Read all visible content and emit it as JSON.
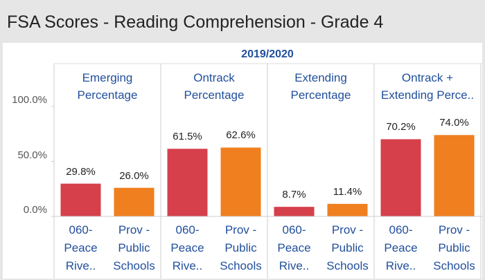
{
  "chart_data": {
    "type": "bar",
    "title": "FSA Scores - Reading Comprehension - Grade 4",
    "subtitle": "2019/2020",
    "categories": [
      "060-Peace Rive..",
      "Prov - Public Schools"
    ],
    "colors": [
      "#d5404b",
      "#f07f1f"
    ],
    "ylim": [
      0,
      100
    ],
    "yticks": [
      {
        "value": 0,
        "label": "0.0%"
      },
      {
        "value": 50,
        "label": "50.0%"
      },
      {
        "value": 100,
        "label": "100.0%"
      }
    ],
    "panels": [
      {
        "name": "Emerging Percentage",
        "values": [
          29.8,
          26.0
        ],
        "value_labels": [
          "29.8%",
          "26.0%"
        ]
      },
      {
        "name": "Ontrack Percentage",
        "values": [
          61.5,
          62.6
        ],
        "value_labels": [
          "61.5%",
          "62.6%"
        ]
      },
      {
        "name": "Extending Percentage",
        "values": [
          8.7,
          11.4
        ],
        "value_labels": [
          "8.7%",
          "11.4%"
        ]
      },
      {
        "name": "Ontrack + Extending Perce..",
        "values": [
          70.2,
          74.0
        ],
        "value_labels": [
          "70.2%",
          "74.0%"
        ]
      }
    ]
  }
}
